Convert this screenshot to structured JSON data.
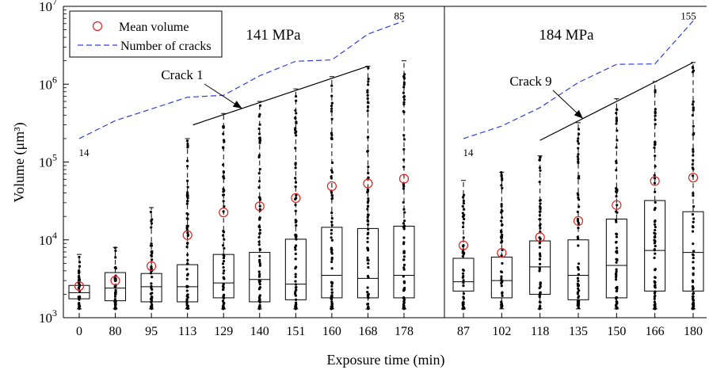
{
  "chart_data": {
    "type": "box",
    "xlabel": "Exposure time (min)",
    "ylabel": "Volume (μm³)",
    "yscale": "log",
    "ylim": [
      1000,
      10000000
    ],
    "y_ticks": [
      {
        "value": 1000,
        "base": "10",
        "exp": "3"
      },
      {
        "value": 10000,
        "base": "10",
        "exp": "4"
      },
      {
        "value": 100000,
        "base": "10",
        "exp": "5"
      },
      {
        "value": 1000000,
        "base": "10",
        "exp": "6"
      },
      {
        "value": 10000000,
        "base": "10",
        "exp": "7"
      }
    ],
    "grid": false,
    "legend": {
      "placement": "top-left",
      "entries": [
        {
          "label": "Mean volume",
          "marker": "circle",
          "color": "#e0201b"
        },
        {
          "label": "Number of cracks",
          "line": "dashed",
          "color": "#2f3fe0"
        }
      ]
    },
    "colors": {
      "mean": "#e0201b",
      "cracks": "#2f3fe0",
      "box": "#000000"
    },
    "panels": [
      {
        "title": "141 MPa",
        "categories": [
          "0",
          "80",
          "95",
          "113",
          "129",
          "140",
          "151",
          "160",
          "168",
          "178"
        ],
        "boxes": [
          {
            "min": 1300,
            "q1": 1750,
            "median": 2100,
            "q3": 2600,
            "max": 6500,
            "mean": 2550
          },
          {
            "min": 1300,
            "q1": 1650,
            "median": 2400,
            "q3": 3800,
            "max": 8000,
            "mean": 3000
          },
          {
            "min": 1300,
            "q1": 1600,
            "median": 2500,
            "q3": 3700,
            "max": 26000,
            "mean": 4600
          },
          {
            "min": 1300,
            "q1": 1600,
            "median": 2500,
            "q3": 4800,
            "max": 200000,
            "mean": 11500
          },
          {
            "min": 1300,
            "q1": 1800,
            "median": 2800,
            "q3": 6500,
            "max": 420000,
            "mean": 22500
          },
          {
            "min": 1300,
            "q1": 1600,
            "median": 3100,
            "q3": 6900,
            "max": 600000,
            "mean": 27000
          },
          {
            "min": 1300,
            "q1": 1700,
            "median": 2700,
            "q3": 10200,
            "max": 870000,
            "mean": 34500
          },
          {
            "min": 1300,
            "q1": 1800,
            "median": 3500,
            "q3": 14500,
            "max": 1250000,
            "mean": 49000
          },
          {
            "min": 1300,
            "q1": 1800,
            "median": 3200,
            "q3": 14000,
            "max": 1700000,
            "mean": 53000
          },
          {
            "min": 1300,
            "q1": 1800,
            "median": 3500,
            "q3": 15000,
            "max": 2000000,
            "mean": 61000
          }
        ],
        "cracks_curve": [
          200000,
          340000,
          480000,
          680000,
          720000,
          1280000,
          1970000,
          2050000,
          4400000,
          6500000
        ],
        "crack_start_label": "14",
        "crack_end_label": "85",
        "annotation": {
          "label": "Crack 1",
          "line_from_category": "113",
          "line_from_value": 300000,
          "line_to_category": "168",
          "line_to_value": 1700000
        }
      },
      {
        "title": "184 MPa",
        "categories": [
          "87",
          "102",
          "118",
          "135",
          "150",
          "166",
          "180"
        ],
        "boxes": [
          {
            "min": 1300,
            "q1": 2200,
            "median": 2900,
            "q3": 5800,
            "max": 58000,
            "mean": 8500
          },
          {
            "min": 1300,
            "q1": 1800,
            "median": 3000,
            "q3": 6000,
            "max": 74000,
            "mean": 6800
          },
          {
            "min": 1300,
            "q1": 2000,
            "median": 4500,
            "q3": 9700,
            "max": 120000,
            "mean": 10800
          },
          {
            "min": 1300,
            "q1": 1700,
            "median": 3500,
            "q3": 10000,
            "max": 320000,
            "mean": 17500
          },
          {
            "min": 1300,
            "q1": 1800,
            "median": 4700,
            "q3": 18500,
            "max": 650000,
            "mean": 28000
          },
          {
            "min": 1300,
            "q1": 2200,
            "median": 7300,
            "q3": 32000,
            "max": 1080000,
            "mean": 57000
          },
          {
            "min": 1300,
            "q1": 2200,
            "median": 6900,
            "q3": 23000,
            "max": 1900000,
            "mean": 63000
          }
        ],
        "cracks_curve": [
          200000,
          290000,
          500000,
          1050000,
          1800000,
          1820000,
          6500000
        ],
        "crack_start_label": "14",
        "crack_end_label": "155",
        "annotation": {
          "label": "Crack 9",
          "line_from_category": "118",
          "line_from_value": 190000,
          "line_to_category": "180",
          "line_to_value": 1900000
        }
      }
    ]
  }
}
